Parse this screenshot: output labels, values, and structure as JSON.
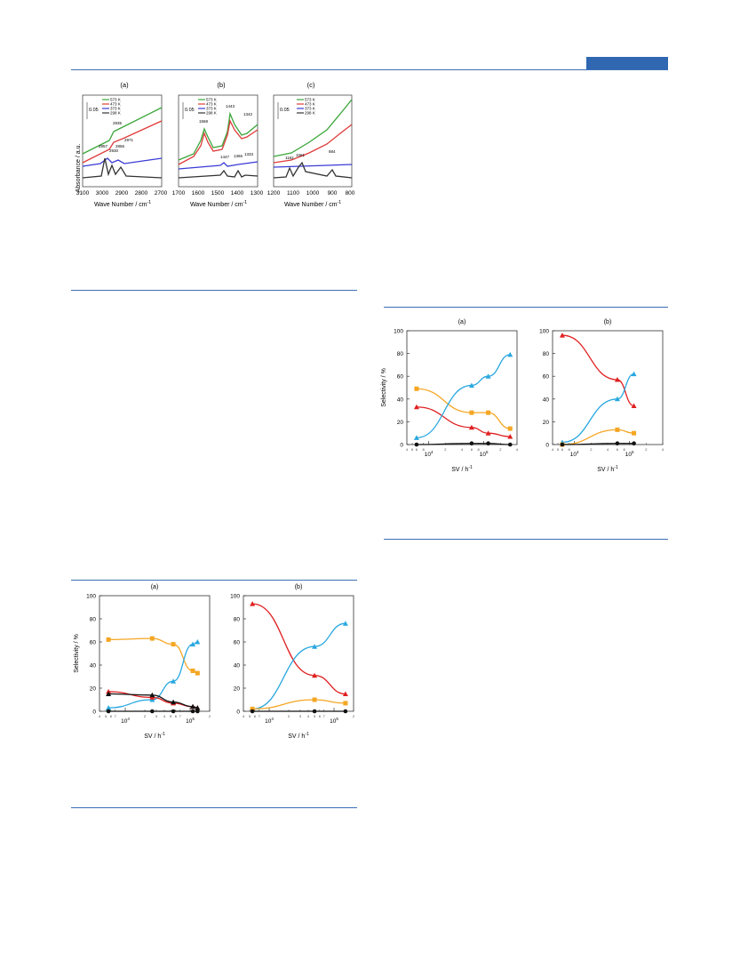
{
  "header": {
    "accent_color": "#2f67b1"
  },
  "figure_ir": {
    "panels": [
      {
        "label": "(a)",
        "xlabel": "Wave Number / cm",
        "xsup": "-1",
        "scale": "0.05",
        "ticks": [
          "3100",
          "3000",
          "2900",
          "2800",
          "2700"
        ],
        "legend": [
          "573 K",
          "473 K",
          "373 K",
          "298 K"
        ],
        "annotations": [
          "2935",
          "2971",
          "2957",
          "2930",
          "2856"
        ]
      },
      {
        "label": "(b)",
        "xlabel": "Wave Number / cm",
        "xsup": "-1",
        "scale": "0.05",
        "ticks": [
          "1700",
          "1600",
          "1500",
          "1400",
          "1300"
        ],
        "legend": [
          "573 K",
          "473 K",
          "373 K",
          "298 K"
        ],
        "annotations": [
          "1568",
          "1443",
          "1342",
          "1447",
          "1365",
          "1333"
        ]
      },
      {
        "label": "(c)",
        "xlabel": "Wave Number / cm",
        "xsup": "-1",
        "scale": "0.05",
        "ticks": [
          "1200",
          "1100",
          "1000",
          "900",
          "800"
        ],
        "legend": [
          "573 K",
          "473 K",
          "373 K",
          "298 K"
        ],
        "annotations": [
          "1162",
          "1061",
          "884"
        ]
      }
    ],
    "ylabel": "Absorbance / a.u.",
    "legend_colors": [
      "#3aa63a",
      "#e03a3a",
      "#3a3ad6",
      "#333333"
    ]
  },
  "chart_data": [
    {
      "type": "scatter",
      "title": "(a)",
      "xlabel": "SV / h",
      "xsup": "-1",
      "ylabel": "Selectivity / %",
      "ylim": [
        0,
        100
      ],
      "x_scale": "log",
      "series": [
        {
          "color": "#f5a623",
          "marker": "square",
          "x": [
            6000,
            60000,
            120000,
            300000
          ],
          "y": [
            49,
            28,
            28,
            14
          ]
        },
        {
          "color": "#e02020",
          "marker": "triangle",
          "x": [
            6000,
            60000,
            120000,
            300000
          ],
          "y": [
            33,
            15,
            10,
            7
          ]
        },
        {
          "color": "#29a8e0",
          "marker": "triangle",
          "x": [
            6000,
            60000,
            120000,
            300000
          ],
          "y": [
            6,
            52,
            60,
            79
          ]
        },
        {
          "color": "#111111",
          "marker": "circle",
          "x": [
            6000,
            60000,
            120000,
            300000
          ],
          "y": [
            0,
            1,
            1,
            0
          ]
        }
      ]
    },
    {
      "type": "scatter",
      "title": "(b)",
      "xlabel": "SV / h",
      "xsup": "-1",
      "ylabel": "",
      "ylim": [
        0,
        100
      ],
      "x_scale": "log",
      "series": [
        {
          "color": "#e02020",
          "marker": "triangle",
          "x": [
            6000,
            60000,
            120000
          ],
          "y": [
            96,
            57,
            34
          ]
        },
        {
          "color": "#29a8e0",
          "marker": "triangle",
          "x": [
            6000,
            60000,
            120000
          ],
          "y": [
            2,
            40,
            62
          ]
        },
        {
          "color": "#f5a623",
          "marker": "square",
          "x": [
            6000,
            60000,
            120000
          ],
          "y": [
            0,
            13,
            10
          ]
        },
        {
          "color": "#111111",
          "marker": "circle",
          "x": [
            6000,
            60000,
            120000
          ],
          "y": [
            0,
            1,
            1
          ]
        }
      ]
    },
    {
      "type": "scatter",
      "title": "(a)",
      "xlabel": "SV / h",
      "xsup": "-1",
      "ylabel": "Selectivity / %",
      "ylim": [
        0,
        100
      ],
      "x_scale": "log",
      "series": [
        {
          "color": "#f5a623",
          "marker": "square",
          "x": [
            5500,
            26000,
            55000,
            110000,
            130000
          ],
          "y": [
            62,
            63,
            58,
            35,
            33
          ]
        },
        {
          "color": "#29a8e0",
          "marker": "triangle",
          "x": [
            5500,
            26000,
            55000,
            110000,
            130000
          ],
          "y": [
            3,
            10,
            26,
            58,
            60
          ]
        },
        {
          "color": "#e02020",
          "marker": "triangle",
          "x": [
            5500,
            26000,
            55000,
            110000,
            130000
          ],
          "y": [
            17,
            12,
            7,
            4,
            3
          ]
        },
        {
          "color": "#111111",
          "marker": "triangle",
          "x": [
            5500,
            26000,
            55000,
            110000,
            130000
          ],
          "y": [
            15,
            14,
            8,
            4,
            3
          ]
        },
        {
          "color": "#111111",
          "marker": "circle",
          "x": [
            5500,
            26000,
            55000,
            110000,
            130000
          ],
          "y": [
            0,
            0,
            0,
            0,
            0
          ]
        }
      ]
    },
    {
      "type": "scatter",
      "title": "(b)",
      "xlabel": "SV / h",
      "xsup": "-1",
      "ylabel": "",
      "ylim": [
        0,
        100
      ],
      "x_scale": "log",
      "series": [
        {
          "color": "#e02020",
          "marker": "triangle",
          "x": [
            5500,
            50000,
            150000
          ],
          "y": [
            93,
            31,
            15
          ]
        },
        {
          "color": "#29a8e0",
          "marker": "triangle",
          "x": [
            5500,
            50000,
            150000
          ],
          "y": [
            2,
            56,
            76
          ]
        },
        {
          "color": "#f5a623",
          "marker": "square",
          "x": [
            5500,
            50000,
            150000
          ],
          "y": [
            2,
            10,
            7
          ]
        },
        {
          "color": "#111111",
          "marker": "circle",
          "x": [
            5500,
            50000,
            150000
          ],
          "y": [
            0,
            0,
            0
          ]
        }
      ]
    }
  ]
}
